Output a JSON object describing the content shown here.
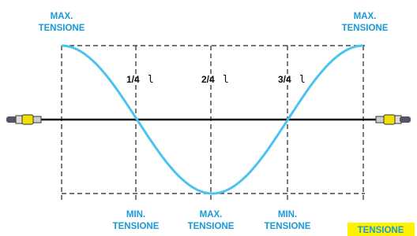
{
  "top_labels": [
    [
      "MAX.",
      "TENSIONE"
    ],
    [
      "MAX.",
      "TENSIONE"
    ]
  ],
  "fraction_labels": [
    {
      "fraction": "1/4",
      "symbol": "l"
    },
    {
      "fraction": "2/4",
      "symbol": "l"
    },
    {
      "fraction": "3/4",
      "symbol": "l"
    }
  ],
  "bottom_labels": [
    [
      "MIN.",
      "TENSIONE"
    ],
    [
      "MAX.",
      "TENSIONE"
    ],
    [
      "MIN.",
      "TENSIONE"
    ]
  ],
  "legend": "TENSIONE"
}
